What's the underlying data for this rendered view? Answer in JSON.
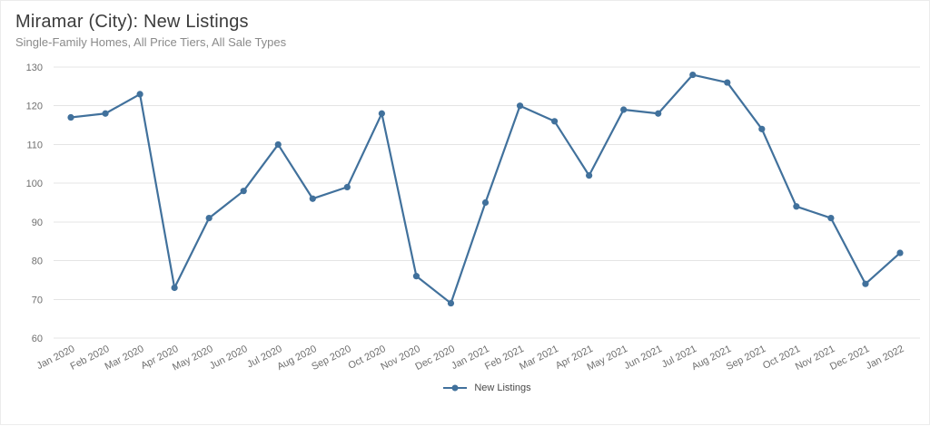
{
  "header": {
    "title": "Miramar (City): New Listings",
    "subtitle": "Single-Family Homes, All Price Tiers, All Sale Types"
  },
  "legend": {
    "label": "New Listings"
  },
  "colors": {
    "line": "#41719c",
    "grid": "#e4e4e4",
    "axis_text": "#6f6f6f",
    "title_text": "#3c3c3c",
    "subtitle_text": "#8a8a8a"
  },
  "chart_data": {
    "type": "line",
    "title": "Miramar (City): New Listings",
    "subtitle": "Single-Family Homes, All Price Tiers, All Sale Types",
    "categories": [
      "Jan 2020",
      "Feb 2020",
      "Mar 2020",
      "Apr 2020",
      "May 2020",
      "Jun 2020",
      "Jul 2020",
      "Aug 2020",
      "Sep 2020",
      "Oct 2020",
      "Nov 2020",
      "Dec 2020",
      "Jan 2021",
      "Feb 2021",
      "Mar 2021",
      "Apr 2021",
      "May 2021",
      "Jun 2021",
      "Jul 2021",
      "Aug 2021",
      "Sep 2021",
      "Oct 2021",
      "Nov 2021",
      "Dec 2021",
      "Jan 2022"
    ],
    "series": [
      {
        "name": "New Listings",
        "values": [
          117,
          118,
          123,
          73,
          91,
          98,
          110,
          96,
          99,
          118,
          76,
          69,
          95,
          120,
          116,
          102,
          119,
          118,
          128,
          126,
          114,
          94,
          91,
          74,
          82
        ]
      }
    ],
    "xlabel": "",
    "ylabel": "",
    "ylim": [
      60,
      130
    ],
    "yticks": [
      60,
      70,
      80,
      90,
      100,
      110,
      120,
      130
    ],
    "grid": true,
    "legend_position": "bottom",
    "marker": "circle",
    "x_label_rotation": -27
  }
}
